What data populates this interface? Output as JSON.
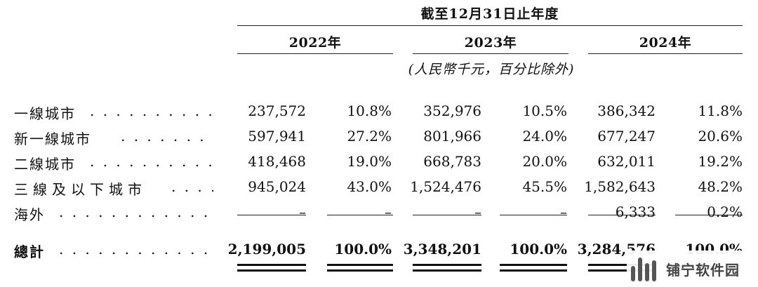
{
  "header": {
    "period_title": "截至12月31日止年度",
    "years": [
      "2022年",
      "2023年",
      "2024年"
    ],
    "unit_note": "(人民幣千元，百分比除外)"
  },
  "rows": [
    {
      "label": "一線城市",
      "v2022": "237,572",
      "p2022": "10.8%",
      "v2023": "352,976",
      "p2023": "10.5%",
      "v2024": "386,342",
      "p2024": "11.8%"
    },
    {
      "label": "新一線城市",
      "v2022": "597,941",
      "p2022": "27.2%",
      "v2023": "801,966",
      "p2023": "24.0%",
      "v2024": "677,247",
      "p2024": "20.6%"
    },
    {
      "label": "二線城市",
      "v2022": "418,468",
      "p2022": "19.0%",
      "v2023": "668,783",
      "p2023": "20.0%",
      "v2024": "632,011",
      "p2024": "19.2%"
    },
    {
      "label": "三線及以下城市",
      "v2022": "945,024",
      "p2022": "43.0%",
      "v2023": "1,524,476",
      "p2023": "45.5%",
      "v2024": "1,582,643",
      "p2024": "48.2%"
    },
    {
      "label": "海外",
      "v2022": "–",
      "p2022": "–",
      "v2023": "–",
      "p2023": "–",
      "v2024": "6,333",
      "p2024": "0.2%"
    }
  ],
  "total": {
    "label": "總計",
    "v2022": "2,199,005",
    "p2022": "100.0%",
    "v2023": "3,348,201",
    "p2023": "100.0%",
    "v2024": "3,284,576",
    "p2024": "100.0%"
  },
  "watermark": {
    "text": "铺宁软件园"
  }
}
